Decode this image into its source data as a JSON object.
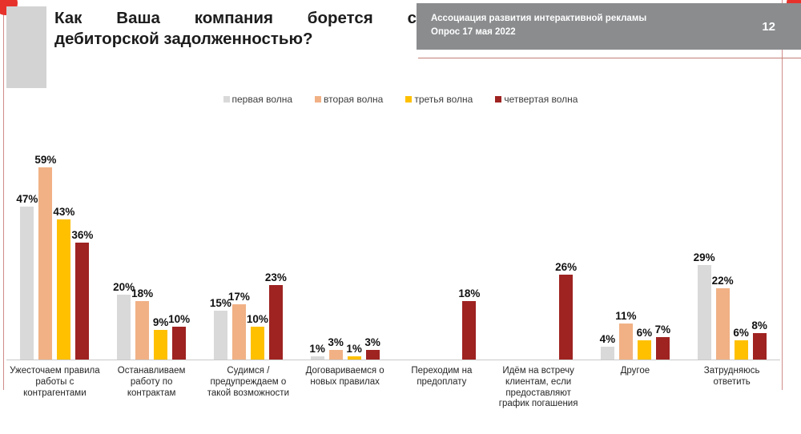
{
  "page": {
    "slide_number": "12",
    "title_line1": "Как Ваша компания борется с",
    "title_line2": "дебиторской задолженностью?",
    "header": {
      "org": "Ассоциация развития интерактивной рекламы",
      "survey": "Опрос 17 мая 2022"
    }
  },
  "colors": {
    "accent_red": "#e6322b",
    "thin_line_red": "#cf8d8a",
    "header_gray": "#8a8c8e",
    "block_gray": "#d3d3d4",
    "axis_gray": "#c9c9c9"
  },
  "chart_data": {
    "type": "bar",
    "title": "Как Ваша компания борется с дебиторской задолженностью?",
    "value_suffix": "%",
    "ylim": [
      0,
      64
    ],
    "grid": false,
    "legend_position": "top",
    "categories": [
      "Ужесточаем правила работы с контрагентами",
      "Останавливаем работу по контрактам",
      "Судимся / предупреждаем о такой возможности",
      "Договариваемся о новых правилах",
      "Переходим на предоплату",
      "Идём на встречу клиентам, если предоставляют график погашения",
      "Другое",
      "Затрудняюсь ответить"
    ],
    "series": [
      {
        "name": "первая волна",
        "color": "#d9d9d9",
        "values": [
          47,
          20,
          15,
          1,
          null,
          null,
          4,
          29
        ]
      },
      {
        "name": "вторая волна",
        "color": "#f1b185",
        "values": [
          59,
          18,
          17,
          3,
          null,
          null,
          11,
          22
        ]
      },
      {
        "name": "третья волна",
        "color": "#ffc000",
        "values": [
          43,
          9,
          10,
          1,
          null,
          null,
          6,
          6
        ]
      },
      {
        "name": "четвертая волна",
        "color": "#9e2321",
        "values": [
          36,
          10,
          23,
          3,
          18,
          26,
          7,
          8
        ]
      }
    ]
  }
}
